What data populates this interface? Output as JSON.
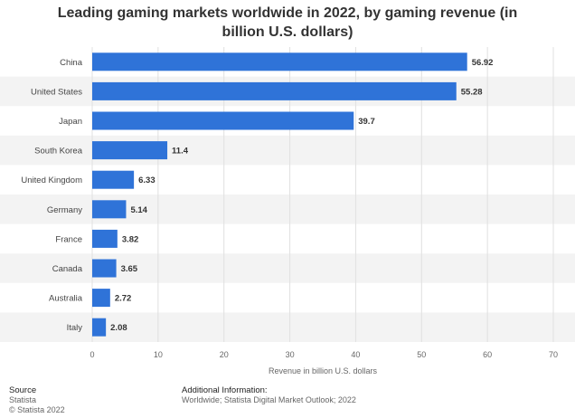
{
  "chart_data": {
    "type": "bar",
    "orientation": "horizontal",
    "title": "Leading gaming markets worldwide in 2022, by gaming revenue (in billion U.S. dollars)",
    "xlabel": "Revenue in billion U.S. dollars",
    "ylabel": "",
    "xlim": [
      0,
      70
    ],
    "ticks": [
      "0",
      "10",
      "20",
      "30",
      "40",
      "50",
      "60",
      "70"
    ],
    "categories": [
      "China",
      "United States",
      "Japan",
      "South Korea",
      "United Kingdom",
      "Germany",
      "France",
      "Canada",
      "Australia",
      "Italy"
    ],
    "values": [
      56.92,
      55.28,
      39.7,
      11.4,
      6.33,
      5.14,
      3.82,
      3.65,
      2.72,
      2.08
    ],
    "value_labels": [
      "56.92",
      "55.28",
      "39.7",
      "11.4",
      "6.33",
      "5.14",
      "3.82",
      "3.65",
      "2.72",
      "2.08"
    ],
    "bar_color": "#2f73d8",
    "stripe_color": "#f3f3f3",
    "grid": true
  },
  "footer": {
    "source_heading": "Source",
    "source_lines": [
      "Statista",
      "© Statista 2022"
    ],
    "info_heading": "Additional Information:",
    "info_text": "Worldwide; Statista Digital Market Outlook; 2022"
  }
}
